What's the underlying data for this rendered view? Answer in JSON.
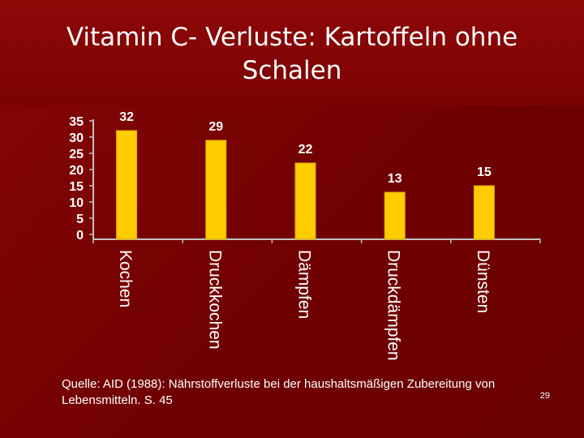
{
  "slide": {
    "title": "Vitamin C- Verluste: Kartoffeln ohne Schalen",
    "source_line1": "Quelle: AID (1988): Nährstoffverluste bei der haushaltsmäßigen Zubereitung von",
    "source_line2": "Lebensmitteln. S. 45",
    "page_number": "29"
  },
  "colors": {
    "background": "#7a0000",
    "bar": "#ffcc00",
    "bar_edge": "#d9a800",
    "axis": "#c0c0c0",
    "text": "#ffffff"
  },
  "chart_data": {
    "type": "bar",
    "categories": [
      "Kochen",
      "Druckkochen",
      "Dämpfen",
      "Druckdämpfen",
      "Dünsten"
    ],
    "values": [
      32,
      29,
      22,
      13,
      15
    ],
    "data_labels": [
      "32",
      "29",
      "22",
      "13",
      "15"
    ],
    "ylim": [
      0,
      35
    ],
    "yticks": [
      0,
      5,
      10,
      15,
      20,
      25,
      30,
      35
    ],
    "grid": false,
    "legend": "none"
  }
}
